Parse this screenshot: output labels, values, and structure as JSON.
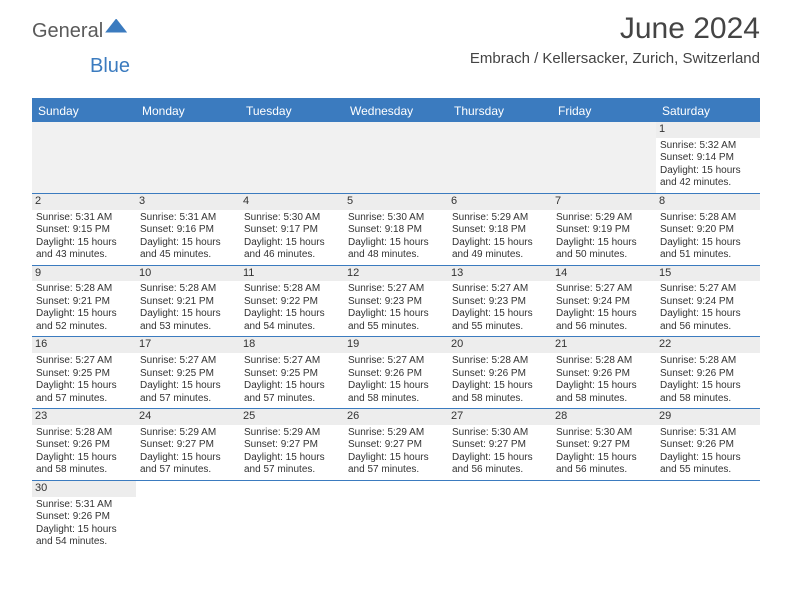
{
  "header": {
    "logo_general": "General",
    "logo_blue": "Blue",
    "month_title": "June 2024",
    "location": "Embrach / Kellersacker, Zurich, Switzerland"
  },
  "colors": {
    "accent": "#3b7bbf",
    "header_text": "#ffffff",
    "daynum_bg": "#ededed",
    "empty_bg": "#f1f1f1"
  },
  "weekdays": [
    "Sunday",
    "Monday",
    "Tuesday",
    "Wednesday",
    "Thursday",
    "Friday",
    "Saturday"
  ],
  "weeks": [
    [
      null,
      null,
      null,
      null,
      null,
      null,
      {
        "n": "1",
        "sr": "Sunrise: 5:32 AM",
        "ss": "Sunset: 9:14 PM",
        "d1": "Daylight: 15 hours",
        "d2": "and 42 minutes."
      }
    ],
    [
      {
        "n": "2",
        "sr": "Sunrise: 5:31 AM",
        "ss": "Sunset: 9:15 PM",
        "d1": "Daylight: 15 hours",
        "d2": "and 43 minutes."
      },
      {
        "n": "3",
        "sr": "Sunrise: 5:31 AM",
        "ss": "Sunset: 9:16 PM",
        "d1": "Daylight: 15 hours",
        "d2": "and 45 minutes."
      },
      {
        "n": "4",
        "sr": "Sunrise: 5:30 AM",
        "ss": "Sunset: 9:17 PM",
        "d1": "Daylight: 15 hours",
        "d2": "and 46 minutes."
      },
      {
        "n": "5",
        "sr": "Sunrise: 5:30 AM",
        "ss": "Sunset: 9:18 PM",
        "d1": "Daylight: 15 hours",
        "d2": "and 48 minutes."
      },
      {
        "n": "6",
        "sr": "Sunrise: 5:29 AM",
        "ss": "Sunset: 9:18 PM",
        "d1": "Daylight: 15 hours",
        "d2": "and 49 minutes."
      },
      {
        "n": "7",
        "sr": "Sunrise: 5:29 AM",
        "ss": "Sunset: 9:19 PM",
        "d1": "Daylight: 15 hours",
        "d2": "and 50 minutes."
      },
      {
        "n": "8",
        "sr": "Sunrise: 5:28 AM",
        "ss": "Sunset: 9:20 PM",
        "d1": "Daylight: 15 hours",
        "d2": "and 51 minutes."
      }
    ],
    [
      {
        "n": "9",
        "sr": "Sunrise: 5:28 AM",
        "ss": "Sunset: 9:21 PM",
        "d1": "Daylight: 15 hours",
        "d2": "and 52 minutes."
      },
      {
        "n": "10",
        "sr": "Sunrise: 5:28 AM",
        "ss": "Sunset: 9:21 PM",
        "d1": "Daylight: 15 hours",
        "d2": "and 53 minutes."
      },
      {
        "n": "11",
        "sr": "Sunrise: 5:28 AM",
        "ss": "Sunset: 9:22 PM",
        "d1": "Daylight: 15 hours",
        "d2": "and 54 minutes."
      },
      {
        "n": "12",
        "sr": "Sunrise: 5:27 AM",
        "ss": "Sunset: 9:23 PM",
        "d1": "Daylight: 15 hours",
        "d2": "and 55 minutes."
      },
      {
        "n": "13",
        "sr": "Sunrise: 5:27 AM",
        "ss": "Sunset: 9:23 PM",
        "d1": "Daylight: 15 hours",
        "d2": "and 55 minutes."
      },
      {
        "n": "14",
        "sr": "Sunrise: 5:27 AM",
        "ss": "Sunset: 9:24 PM",
        "d1": "Daylight: 15 hours",
        "d2": "and 56 minutes."
      },
      {
        "n": "15",
        "sr": "Sunrise: 5:27 AM",
        "ss": "Sunset: 9:24 PM",
        "d1": "Daylight: 15 hours",
        "d2": "and 56 minutes."
      }
    ],
    [
      {
        "n": "16",
        "sr": "Sunrise: 5:27 AM",
        "ss": "Sunset: 9:25 PM",
        "d1": "Daylight: 15 hours",
        "d2": "and 57 minutes."
      },
      {
        "n": "17",
        "sr": "Sunrise: 5:27 AM",
        "ss": "Sunset: 9:25 PM",
        "d1": "Daylight: 15 hours",
        "d2": "and 57 minutes."
      },
      {
        "n": "18",
        "sr": "Sunrise: 5:27 AM",
        "ss": "Sunset: 9:25 PM",
        "d1": "Daylight: 15 hours",
        "d2": "and 57 minutes."
      },
      {
        "n": "19",
        "sr": "Sunrise: 5:27 AM",
        "ss": "Sunset: 9:26 PM",
        "d1": "Daylight: 15 hours",
        "d2": "and 58 minutes."
      },
      {
        "n": "20",
        "sr": "Sunrise: 5:28 AM",
        "ss": "Sunset: 9:26 PM",
        "d1": "Daylight: 15 hours",
        "d2": "and 58 minutes."
      },
      {
        "n": "21",
        "sr": "Sunrise: 5:28 AM",
        "ss": "Sunset: 9:26 PM",
        "d1": "Daylight: 15 hours",
        "d2": "and 58 minutes."
      },
      {
        "n": "22",
        "sr": "Sunrise: 5:28 AM",
        "ss": "Sunset: 9:26 PM",
        "d1": "Daylight: 15 hours",
        "d2": "and 58 minutes."
      }
    ],
    [
      {
        "n": "23",
        "sr": "Sunrise: 5:28 AM",
        "ss": "Sunset: 9:26 PM",
        "d1": "Daylight: 15 hours",
        "d2": "and 58 minutes."
      },
      {
        "n": "24",
        "sr": "Sunrise: 5:29 AM",
        "ss": "Sunset: 9:27 PM",
        "d1": "Daylight: 15 hours",
        "d2": "and 57 minutes."
      },
      {
        "n": "25",
        "sr": "Sunrise: 5:29 AM",
        "ss": "Sunset: 9:27 PM",
        "d1": "Daylight: 15 hours",
        "d2": "and 57 minutes."
      },
      {
        "n": "26",
        "sr": "Sunrise: 5:29 AM",
        "ss": "Sunset: 9:27 PM",
        "d1": "Daylight: 15 hours",
        "d2": "and 57 minutes."
      },
      {
        "n": "27",
        "sr": "Sunrise: 5:30 AM",
        "ss": "Sunset: 9:27 PM",
        "d1": "Daylight: 15 hours",
        "d2": "and 56 minutes."
      },
      {
        "n": "28",
        "sr": "Sunrise: 5:30 AM",
        "ss": "Sunset: 9:27 PM",
        "d1": "Daylight: 15 hours",
        "d2": "and 56 minutes."
      },
      {
        "n": "29",
        "sr": "Sunrise: 5:31 AM",
        "ss": "Sunset: 9:26 PM",
        "d1": "Daylight: 15 hours",
        "d2": "and 55 minutes."
      }
    ],
    [
      {
        "n": "30",
        "sr": "Sunrise: 5:31 AM",
        "ss": "Sunset: 9:26 PM",
        "d1": "Daylight: 15 hours",
        "d2": "and 54 minutes."
      },
      null,
      null,
      null,
      null,
      null,
      null
    ]
  ]
}
